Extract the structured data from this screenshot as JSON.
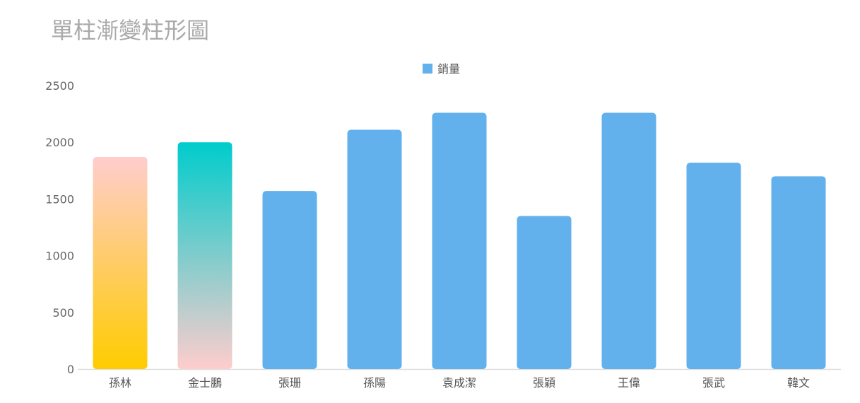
{
  "chart_data": {
    "type": "bar",
    "title": "單柱漸變柱形圖",
    "legend": {
      "entries": [
        "銷量"
      ],
      "position": "top-center",
      "color": "#63b1ec"
    },
    "categories": [
      "孫林",
      "金士鵬",
      "張珊",
      "孫陽",
      "袁成潔",
      "張穎",
      "王偉",
      "張武",
      "韓文"
    ],
    "series": [
      {
        "name": "銷量",
        "values": [
          1870,
          2000,
          1570,
          2110,
          2260,
          1350,
          2260,
          1820,
          1700
        ]
      }
    ],
    "ylim": [
      0,
      2500
    ],
    "yticks": [
      0,
      500,
      1000,
      1500,
      2000,
      2500
    ],
    "grid": false,
    "colors": {
      "default": "#63b1ec",
      "gradients": {
        "孫林": [
          "#ffcdcd",
          "#ffcc00"
        ],
        "金士鵬": [
          "#00cccc",
          "#ffcdcd"
        ]
      }
    }
  }
}
